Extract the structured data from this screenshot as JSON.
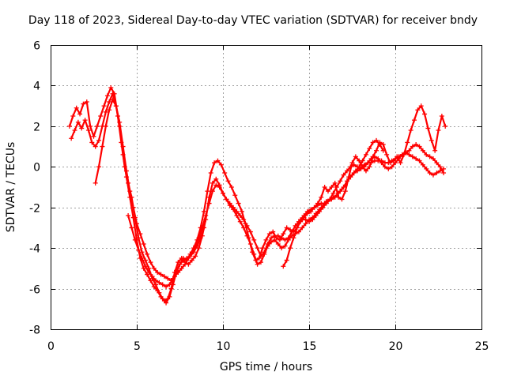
{
  "chart_data": {
    "type": "scatter",
    "title": "Day 118 of 2023, Sidereal Day-to-day VTEC variation (SDTVAR) for receiver bndy",
    "xlabel": "GPS time / hours",
    "ylabel": "SDTVAR / TECUs",
    "xlim": [
      0,
      25
    ],
    "ylim": [
      -8,
      6
    ],
    "xticks": [
      "0",
      "5",
      "10",
      "15",
      "20",
      "25"
    ],
    "yticks": [
      "-8",
      "-6",
      "-4",
      "-2",
      "0",
      "2",
      "4",
      "6"
    ],
    "grid": true,
    "legend": "none",
    "marker": "+",
    "color": "#ff0000",
    "series": [
      {
        "x": [
          1.1,
          1.3,
          1.5,
          1.7,
          1.9,
          2.1,
          2.3,
          2.5,
          2.7,
          2.9,
          3.1,
          3.3,
          3.5,
          3.7,
          3.9,
          4.1,
          4.3,
          4.5,
          4.7,
          4.9,
          5.1,
          5.3,
          5.5,
          5.7,
          5.9,
          6.1,
          6.3,
          6.5,
          6.7,
          6.9,
          7.1,
          7.3,
          7.5,
          7.7,
          7.9,
          8.1,
          8.3,
          8.5,
          8.7,
          8.9,
          9.1,
          9.3,
          9.5,
          9.7,
          9.9,
          10.1,
          10.3,
          10.5,
          10.7,
          10.9,
          11.1,
          11.3,
          11.5,
          11.7,
          11.9,
          12.1,
          12.3,
          12.5,
          12.7,
          12.9,
          13.1,
          13.3,
          13.5,
          13.7,
          13.9,
          14.1,
          14.3,
          14.5,
          14.7,
          14.9,
          15.1,
          15.3,
          15.5,
          15.7,
          15.9,
          16.1,
          16.3,
          16.5,
          16.7,
          16.9,
          17.1,
          17.3,
          17.5,
          17.7,
          17.9,
          18.1,
          18.3,
          18.5,
          18.7,
          18.9,
          19.1,
          19.3,
          19.5,
          19.7,
          19.9,
          20.1,
          20.3,
          20.5,
          20.7,
          20.9,
          21.1,
          21.3,
          21.5,
          21.7,
          21.9,
          22.1,
          22.3,
          22.5,
          22.7,
          22.9
        ],
        "values": [
          2.0,
          2.5,
          2.9,
          2.6,
          3.1,
          3.2,
          2.0,
          1.5,
          2.0,
          2.5,
          3.0,
          3.5,
          3.9,
          3.6,
          2.5,
          1.2,
          0.0,
          -0.8,
          -1.5,
          -2.5,
          -3.5,
          -4.2,
          -4.6,
          -5.0,
          -5.5,
          -5.8,
          -6.2,
          -6.5,
          -6.7,
          -6.4,
          -5.8,
          -5.2,
          -4.8,
          -4.5,
          -4.6,
          -4.3,
          -4.0,
          -3.6,
          -3.0,
          -2.2,
          -1.2,
          -0.3,
          0.2,
          0.3,
          0.1,
          -0.3,
          -0.7,
          -1.0,
          -1.4,
          -1.8,
          -2.2,
          -2.8,
          -3.5,
          -4.2,
          -4.6,
          -4.5,
          -4.0,
          -3.6,
          -3.3,
          -3.2,
          -3.5,
          -3.6,
          -3.3,
          -3.0,
          -3.1,
          -3.2,
          -3.0,
          -2.7,
          -2.5,
          -2.3,
          -2.2,
          -2.0,
          -1.8,
          -1.5,
          -1.0,
          -1.2,
          -1.0,
          -0.8,
          -1.5,
          -1.6,
          -1.2,
          -0.5,
          0.2,
          0.5,
          0.3,
          0.0,
          -0.2,
          0.0,
          0.5,
          0.8,
          1.2,
          1.1,
          0.6,
          0.2,
          0.3,
          0.5,
          0.2,
          0.6,
          1.2,
          1.8,
          2.3,
          2.8,
          3.0,
          2.6,
          1.9,
          1.3,
          0.8,
          1.8,
          2.5,
          2.0
        ]
      },
      {
        "x": [
          1.2,
          1.4,
          1.6,
          1.8,
          2.0,
          2.2,
          2.4,
          2.6,
          2.8,
          3.0,
          3.2,
          3.4,
          3.6,
          3.8,
          4.0,
          4.2,
          4.4,
          4.6,
          4.8,
          5.0,
          5.2,
          5.4,
          5.6,
          5.8,
          6.0,
          6.2,
          6.4,
          6.6,
          6.8,
          7.0,
          7.2,
          7.4,
          7.6,
          7.8,
          8.0,
          8.2,
          8.4,
          8.6,
          8.8,
          9.0,
          9.2,
          9.4,
          9.6,
          9.8,
          10.0,
          10.2,
          10.4,
          10.6,
          10.8,
          11.0,
          11.2,
          11.4,
          11.6,
          11.8,
          12.0,
          12.2,
          12.4,
          12.6,
          12.8,
          13.0,
          13.2,
          13.4,
          13.6,
          13.8,
          14.0,
          14.2,
          14.4,
          14.6,
          14.8,
          15.0,
          15.2,
          15.4,
          15.6,
          15.8,
          16.0,
          16.2,
          16.4,
          16.6,
          16.8,
          17.0,
          17.2,
          17.4,
          17.6,
          17.8,
          18.0,
          18.2,
          18.4,
          18.6,
          18.8,
          19.0,
          19.2,
          19.4,
          19.6,
          19.8,
          20.0,
          20.2,
          20.4,
          20.6,
          20.8,
          21.0,
          21.2,
          21.4,
          21.6,
          21.8,
          22.0,
          22.2,
          22.4,
          22.6,
          22.8
        ],
        "values": [
          1.4,
          1.8,
          2.2,
          1.9,
          2.3,
          1.8,
          1.2,
          1.0,
          1.3,
          2.0,
          2.7,
          3.2,
          3.6,
          3.0,
          2.0,
          0.6,
          -0.5,
          -1.5,
          -2.5,
          -3.6,
          -4.5,
          -5.0,
          -5.3,
          -5.6,
          -5.9,
          -6.1,
          -6.4,
          -6.6,
          -6.5,
          -6.0,
          -5.2,
          -4.7,
          -4.5,
          -4.7,
          -4.8,
          -4.6,
          -4.4,
          -4.0,
          -3.4,
          -2.6,
          -1.5,
          -0.8,
          -0.6,
          -0.9,
          -1.3,
          -1.6,
          -1.9,
          -2.1,
          -2.4,
          -2.7,
          -3.0,
          -3.4,
          -3.8,
          -4.3,
          -4.8,
          -4.7,
          -4.3,
          -3.9,
          -3.7,
          -3.6,
          -3.8,
          -4.0,
          -3.9,
          -3.6,
          -3.4,
          -3.3,
          -3.2,
          -3.0,
          -2.8,
          -2.6,
          -2.5,
          -2.3,
          -2.1,
          -1.9,
          -1.7,
          -1.6,
          -1.5,
          -1.4,
          -1.2,
          -1.0,
          -0.7,
          -0.5,
          -0.3,
          -0.2,
          -0.1,
          0.1,
          0.2,
          0.2,
          0.3,
          0.3,
          0.3,
          0.2,
          0.2,
          0.3,
          0.4,
          0.5,
          0.6,
          0.7,
          0.8,
          1.0,
          1.1,
          1.0,
          0.8,
          0.6,
          0.5,
          0.4,
          0.2,
          0.0,
          -0.3
        ]
      },
      {
        "x": [
          2.6,
          2.8,
          3.0,
          3.2,
          3.4,
          3.6,
          3.8,
          4.0,
          4.2,
          4.4,
          4.6,
          4.8,
          5.0,
          5.2,
          5.4,
          5.6,
          5.8,
          6.0,
          6.2,
          6.4,
          6.6,
          6.8,
          7.0,
          7.2,
          7.4,
          7.6,
          7.8,
          8.0,
          8.2,
          8.4,
          8.6,
          8.8,
          9.0,
          9.2,
          9.4,
          9.6,
          9.8,
          10.0,
          10.2,
          10.4,
          10.6,
          10.8,
          11.0,
          11.2,
          11.4,
          11.6,
          11.8,
          12.0,
          12.2,
          12.4,
          12.6,
          12.8,
          13.0,
          13.2,
          13.4,
          13.6,
          13.8,
          14.0,
          14.2,
          14.4,
          14.6,
          14.8,
          15.0,
          15.2,
          15.4,
          15.6,
          15.8,
          16.0,
          16.2,
          16.4,
          16.6,
          16.8,
          17.0,
          17.2,
          17.4,
          17.6,
          17.8,
          18.0,
          18.2,
          18.4,
          18.6,
          18.8,
          19.0,
          19.2,
          19.4,
          19.6,
          19.8,
          20.0,
          20.2,
          20.4,
          20.6,
          20.8,
          21.0,
          21.2,
          21.4,
          21.6,
          21.8,
          22.0,
          22.2,
          22.4,
          22.6,
          22.8
        ],
        "values": [
          -0.8,
          0.0,
          1.0,
          2.0,
          2.8,
          3.3,
          3.0,
          2.2,
          1.0,
          -0.2,
          -1.2,
          -2.0,
          -2.8,
          -3.3,
          -3.8,
          -4.3,
          -4.7,
          -5.0,
          -5.2,
          -5.3,
          -5.4,
          -5.5,
          -5.6,
          -5.4,
          -5.2,
          -5.0,
          -4.8,
          -4.5,
          -4.2,
          -3.9,
          -3.5,
          -3.0,
          -2.4,
          -1.8,
          -1.2,
          -0.9,
          -1.0,
          -1.3,
          -1.6,
          -1.8,
          -2.0,
          -2.2,
          -2.4,
          -2.6,
          -2.9,
          -3.2,
          -3.6,
          -4.0,
          -4.4,
          -4.2,
          -3.8,
          -3.5,
          -3.4,
          -3.4,
          -3.5,
          -3.6,
          -3.5,
          -3.2,
          -2.9,
          -2.7,
          -2.6,
          -2.6,
          -2.7,
          -2.6,
          -2.4,
          -2.2,
          -2.0,
          -1.8,
          -1.6,
          -1.3,
          -1.0,
          -0.7,
          -0.4,
          -0.2,
          0.0,
          0.1,
          0.0,
          -0.1,
          0.0,
          0.2,
          0.4,
          0.5,
          0.4,
          0.2,
          0.0,
          -0.1,
          0.0,
          0.2,
          0.4,
          0.6,
          0.7,
          0.6,
          0.5,
          0.4,
          0.3,
          0.1,
          -0.1,
          -0.3,
          -0.4,
          -0.3,
          -0.2,
          -0.1
        ]
      },
      {
        "x": [
          4.5,
          4.7,
          4.9,
          5.1,
          5.3,
          5.5,
          5.7,
          5.9,
          6.1,
          6.3,
          6.5,
          6.7,
          6.9,
          7.1,
          7.3,
          7.5,
          7.7,
          7.9,
          8.1,
          8.3,
          8.5,
          8.7,
          8.9
        ],
        "values": [
          -2.4,
          -3.0,
          -3.6,
          -4.1,
          -4.5,
          -4.9,
          -5.2,
          -5.4,
          -5.6,
          -5.7,
          -5.8,
          -5.9,
          -5.8,
          -5.5,
          -5.1,
          -4.8,
          -4.6,
          -4.5,
          -4.4,
          -4.2,
          -3.9,
          -3.5,
          -3.0
        ]
      },
      {
        "x": [
          13.5,
          13.7,
          13.9,
          14.1,
          14.3,
          14.5,
          14.7,
          14.9,
          15.1,
          15.3,
          15.5,
          15.7,
          15.9,
          16.1,
          16.3,
          16.5,
          16.7,
          16.9,
          17.1,
          17.3,
          17.5,
          17.7,
          17.9,
          18.1,
          18.3,
          18.5,
          18.7,
          18.9,
          19.1,
          19.3
        ],
        "values": [
          -4.9,
          -4.6,
          -4.0,
          -3.5,
          -3.0,
          -2.6,
          -2.4,
          -2.2,
          -2.1,
          -2.0,
          -1.9,
          -1.8,
          -1.8,
          -1.7,
          -1.6,
          -1.5,
          -1.3,
          -1.1,
          -0.9,
          -0.6,
          -0.4,
          -0.2,
          0.0,
          0.3,
          0.6,
          0.9,
          1.2,
          1.3,
          1.1,
          0.8
        ]
      }
    ]
  }
}
